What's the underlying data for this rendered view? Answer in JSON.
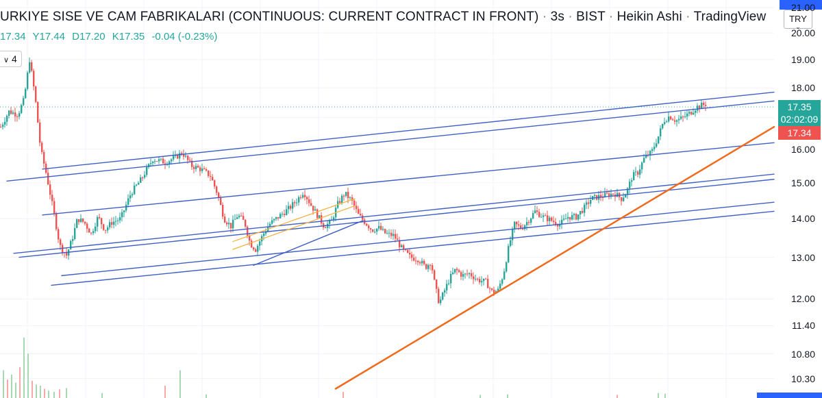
{
  "header": {
    "title_prefix": "URKIYE SISE VE CAM FABRIKALARI (CONTINUOUS: CURRENT CONTRACT IN FRONT)",
    "interval": "3s",
    "exchange": "BIST",
    "chart_style": "Heikin Ashi",
    "brand": "TradingView",
    "separator": "·"
  },
  "ohlc": {
    "open": "17.34",
    "high": "Y17.44",
    "low": "D17.20",
    "close": "K17.35",
    "change": "-0.04 (-0.23%)"
  },
  "indicator_badge": "4",
  "currency": {
    "label": "TRY",
    "caret": "⌄"
  },
  "price_labels": {
    "last_price": "17.35",
    "countdown": "02:02:09",
    "prev_price": "17.34"
  },
  "colors": {
    "up": "#26a69a",
    "down": "#ef5350",
    "trendline_blue": "#3f5fc5",
    "trendline_orange": "#f06a1c",
    "channel_yellow": "#f5b342",
    "accent": "#2962ff"
  },
  "chart_data": {
    "type": "candlestick",
    "style": "Heikin Ashi",
    "scale": "log",
    "ylim": [
      10.2,
      21.0
    ],
    "y_ticks": [
      "21.00",
      "20.00",
      "19.00",
      "18.00",
      "17.00",
      "16.00",
      "15.00",
      "14.00",
      "13.00",
      "12.00",
      "11.40",
      "10.80",
      "10.30"
    ],
    "grid": true,
    "last_price": 17.35,
    "anchors_close": [
      [
        0,
        16.7
      ],
      [
        12,
        17.2
      ],
      [
        25,
        17.1
      ],
      [
        34,
        17.6
      ],
      [
        42,
        19.0
      ],
      [
        50,
        17.7
      ],
      [
        58,
        16.0
      ],
      [
        66,
        15.3
      ],
      [
        76,
        14.3
      ],
      [
        86,
        13.3
      ],
      [
        96,
        13.05
      ],
      [
        104,
        13.45
      ],
      [
        112,
        14.0
      ],
      [
        122,
        13.9
      ],
      [
        132,
        13.6
      ],
      [
        142,
        14.05
      ],
      [
        152,
        13.7
      ],
      [
        162,
        13.9
      ],
      [
        175,
        14.0
      ],
      [
        190,
        14.7
      ],
      [
        205,
        15.1
      ],
      [
        222,
        15.7
      ],
      [
        240,
        15.6
      ],
      [
        255,
        15.75
      ],
      [
        265,
        15.9
      ],
      [
        278,
        15.5
      ],
      [
        292,
        15.4
      ],
      [
        306,
        15.2
      ],
      [
        316,
        14.7
      ],
      [
        326,
        14.0
      ],
      [
        336,
        13.8
      ],
      [
        346,
        14.1
      ],
      [
        356,
        13.9
      ],
      [
        364,
        13.35
      ],
      [
        372,
        13.2
      ],
      [
        382,
        13.55
      ],
      [
        392,
        13.85
      ],
      [
        402,
        14.0
      ],
      [
        412,
        14.15
      ],
      [
        422,
        14.3
      ],
      [
        432,
        14.5
      ],
      [
        442,
        14.75
      ],
      [
        452,
        14.4
      ],
      [
        462,
        14.1
      ],
      [
        472,
        13.8
      ],
      [
        482,
        13.9
      ],
      [
        492,
        14.4
      ],
      [
        502,
        14.7
      ],
      [
        512,
        14.5
      ],
      [
        522,
        14.1
      ],
      [
        532,
        13.9
      ],
      [
        542,
        13.7
      ],
      [
        552,
        13.75
      ],
      [
        562,
        13.6
      ],
      [
        574,
        13.55
      ],
      [
        586,
        13.2
      ],
      [
        598,
        13.0
      ],
      [
        610,
        12.95
      ],
      [
        620,
        12.75
      ],
      [
        628,
        12.9
      ],
      [
        634,
        12.3
      ],
      [
        640,
        11.9
      ],
      [
        648,
        12.2
      ],
      [
        656,
        12.5
      ],
      [
        664,
        12.7
      ],
      [
        674,
        12.55
      ],
      [
        684,
        12.6
      ],
      [
        696,
        12.45
      ],
      [
        708,
        12.4
      ],
      [
        718,
        12.15
      ],
      [
        726,
        12.2
      ],
      [
        734,
        12.6
      ],
      [
        742,
        13.3
      ],
      [
        750,
        13.85
      ],
      [
        760,
        13.75
      ],
      [
        770,
        13.95
      ],
      [
        780,
        14.2
      ],
      [
        792,
        14.05
      ],
      [
        804,
        13.95
      ],
      [
        816,
        13.85
      ],
      [
        828,
        14.05
      ],
      [
        840,
        14.05
      ],
      [
        852,
        14.3
      ],
      [
        862,
        14.55
      ],
      [
        872,
        14.6
      ],
      [
        884,
        14.65
      ],
      [
        896,
        14.7
      ],
      [
        906,
        14.55
      ],
      [
        914,
        14.75
      ],
      [
        922,
        15.2
      ],
      [
        930,
        15.3
      ],
      [
        940,
        15.75
      ],
      [
        950,
        15.9
      ],
      [
        960,
        16.4
      ],
      [
        968,
        16.9
      ],
      [
        976,
        17.05
      ],
      [
        986,
        16.9
      ],
      [
        996,
        17.0
      ],
      [
        1006,
        17.15
      ],
      [
        1016,
        17.35
      ],
      [
        1030,
        17.45
      ]
    ],
    "trendlines": [
      {
        "color": "blue",
        "from": [
          62,
          15.4
        ],
        "to": [
          1130,
          17.85
        ]
      },
      {
        "color": "blue",
        "from": [
          10,
          15.05
        ],
        "to": [
          1130,
          17.55
        ]
      },
      {
        "color": "blue",
        "from": [
          62,
          14.1
        ],
        "to": [
          1130,
          16.2
        ]
      },
      {
        "color": "blue",
        "from": [
          20,
          13.1
        ],
        "to": [
          1130,
          15.25
        ]
      },
      {
        "color": "blue",
        "from": [
          28,
          13.0
        ],
        "to": [
          1130,
          15.1
        ]
      },
      {
        "color": "blue",
        "from": [
          90,
          12.55
        ],
        "to": [
          1130,
          14.45
        ]
      },
      {
        "color": "blue",
        "from": [
          75,
          12.32
        ],
        "to": [
          1130,
          14.2
        ]
      },
      {
        "color": "blue",
        "from": [
          370,
          12.8
        ],
        "to": [
          530,
          13.95
        ]
      },
      {
        "color": "orange",
        "from": [
          490,
          10.1
        ],
        "to": [
          1130,
          16.7
        ]
      },
      {
        "color": "yellow",
        "from": [
          340,
          13.4
        ],
        "to": [
          518,
          14.55
        ]
      },
      {
        "color": "yellow",
        "from": [
          340,
          13.2
        ],
        "to": [
          518,
          14.35
        ]
      }
    ],
    "volume": [
      [
        4,
        0.45
      ],
      [
        10,
        0.3
      ],
      [
        16,
        0.38
      ],
      [
        22,
        0.25
      ],
      [
        28,
        0.5
      ],
      [
        34,
        0.98
      ],
      [
        40,
        0.72
      ],
      [
        46,
        0.28
      ],
      [
        52,
        0.22
      ],
      [
        58,
        0.2
      ],
      [
        64,
        0.15
      ],
      [
        70,
        0.12
      ],
      [
        78,
        0.1
      ],
      [
        86,
        0.14
      ],
      [
        96,
        0.16
      ],
      [
        148,
        0.08
      ],
      [
        240,
        0.2
      ],
      [
        262,
        0.45
      ],
      [
        300,
        0.06
      ],
      [
        500,
        0.1
      ],
      [
        700,
        0.05
      ],
      [
        740,
        0.06
      ],
      [
        900,
        0.05
      ],
      [
        960,
        0.08
      ],
      [
        970,
        0.07
      ]
    ]
  }
}
